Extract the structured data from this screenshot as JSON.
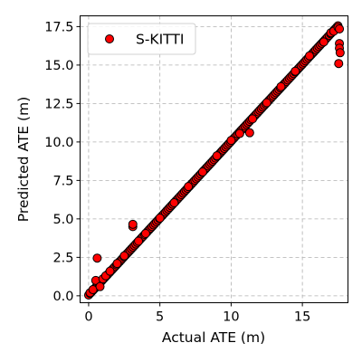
{
  "chart_data": {
    "type": "scatter",
    "xlabel": "Actual ATE (m)",
    "ylabel": "Predicted ATE (m)",
    "xlim": [
      -0.6,
      18.2
    ],
    "ylim": [
      -0.45,
      18.2
    ],
    "xticks": [
      0,
      5,
      10,
      15
    ],
    "xtick_labels": [
      "0",
      "5",
      "10",
      "15"
    ],
    "yticks": [
      0.0,
      2.5,
      5.0,
      7.5,
      10.0,
      12.5,
      15.0,
      17.5
    ],
    "ytick_labels": [
      "0.0",
      "2.5",
      "5.0",
      "7.5",
      "10.0",
      "12.5",
      "15.0",
      "17.5"
    ],
    "grid": true,
    "legend_position": "top-left",
    "series": [
      {
        "name": "S-KITTI",
        "color": "#ff0000",
        "edge_color": "#000000",
        "marker": "circle",
        "trend": {
          "x_range": [
            0.0,
            17.5
          ],
          "slope": 1.0,
          "intercept": 0.05,
          "count": 170
        },
        "points": [
          {
            "x": 0.1,
            "y": 0.2
          },
          {
            "x": 0.3,
            "y": 0.4
          },
          {
            "x": 0.5,
            "y": 1.0
          },
          {
            "x": 0.6,
            "y": 2.45
          },
          {
            "x": 0.8,
            "y": 0.6
          },
          {
            "x": 1.0,
            "y": 1.1
          },
          {
            "x": 1.2,
            "y": 1.3
          },
          {
            "x": 1.5,
            "y": 1.6
          },
          {
            "x": 2.0,
            "y": 2.1
          },
          {
            "x": 2.5,
            "y": 2.6
          },
          {
            "x": 3.1,
            "y": 4.5
          },
          {
            "x": 3.1,
            "y": 4.65
          },
          {
            "x": 3.5,
            "y": 3.55
          },
          {
            "x": 4.0,
            "y": 4.05
          },
          {
            "x": 5.0,
            "y": 5.05
          },
          {
            "x": 6.0,
            "y": 6.05
          },
          {
            "x": 7.0,
            "y": 7.1
          },
          {
            "x": 8.0,
            "y": 8.05
          },
          {
            "x": 9.0,
            "y": 9.1
          },
          {
            "x": 10.0,
            "y": 10.1
          },
          {
            "x": 10.6,
            "y": 10.55
          },
          {
            "x": 11.3,
            "y": 10.6
          },
          {
            "x": 11.5,
            "y": 11.5
          },
          {
            "x": 12.5,
            "y": 12.55
          },
          {
            "x": 13.5,
            "y": 13.6
          },
          {
            "x": 14.5,
            "y": 14.6
          },
          {
            "x": 15.5,
            "y": 15.6
          },
          {
            "x": 16.5,
            "y": 16.5
          },
          {
            "x": 17.0,
            "y": 17.1
          },
          {
            "x": 17.2,
            "y": 17.2
          },
          {
            "x": 17.5,
            "y": 17.45
          },
          {
            "x": 17.6,
            "y": 17.35
          },
          {
            "x": 17.6,
            "y": 16.4
          },
          {
            "x": 17.6,
            "y": 16.1
          },
          {
            "x": 17.65,
            "y": 15.8
          },
          {
            "x": 17.55,
            "y": 15.1
          }
        ]
      }
    ]
  }
}
